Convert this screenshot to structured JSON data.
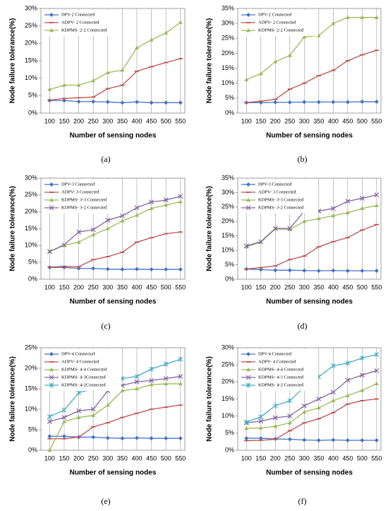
{
  "chart_data": [
    {
      "type": "line",
      "caption": "(a)",
      "xlabel": "Number of sensing nodes",
      "ylabel": "Node failure tolerance(%)",
      "x": [
        100,
        150,
        200,
        250,
        300,
        350,
        400,
        450,
        500,
        550
      ],
      "xlim": [
        70,
        565
      ],
      "xticks": [
        100,
        150,
        200,
        250,
        300,
        350,
        400,
        450,
        500,
        550
      ],
      "ylim": [
        0,
        30
      ],
      "yticks": [
        {
          "value": 0,
          "label": "0%"
        },
        {
          "value": 5,
          "label": "5%"
        },
        {
          "value": 10,
          "label": "10%"
        },
        {
          "value": 15,
          "label": "15%"
        },
        {
          "value": 20,
          "label": "20%"
        },
        {
          "value": 25,
          "label": "25%"
        },
        {
          "value": 30,
          "label": "30%"
        }
      ],
      "grid": "x",
      "legend": "top-left",
      "series": [
        {
          "name": "DPV-2 Connected",
          "color": "#4472c4",
          "marker": "diamond",
          "values": [
            3.6,
            3.6,
            3.3,
            3.3,
            3.2,
            3.0,
            3.2,
            3.0,
            3.0,
            3.0
          ]
        },
        {
          "name": "ADPV- 2 Connected",
          "color": "#c0504d",
          "marker": "dash",
          "values": [
            3.7,
            4.2,
            4.4,
            4.6,
            7.0,
            8.0,
            12.0,
            13.3,
            14.5,
            15.6
          ]
        },
        {
          "name": "KDPMS- 2-2 Connected",
          "color": "#9bbb59",
          "marker": "triangle",
          "values": [
            6.8,
            8.0,
            8.0,
            9.3,
            11.6,
            12.3,
            18.7,
            21.0,
            23.0,
            26.0
          ]
        }
      ]
    },
    {
      "type": "line",
      "caption": "(b)",
      "xlabel": "Number of sensing nodes",
      "ylabel": "Node failure tolerance(%)",
      "x": [
        100,
        150,
        200,
        250,
        300,
        350,
        400,
        450,
        500,
        550
      ],
      "xlim": [
        70,
        565
      ],
      "xticks": [
        100,
        150,
        200,
        250,
        300,
        350,
        400,
        450,
        500,
        550
      ],
      "ylim": [
        0,
        35
      ],
      "yticks": [
        {
          "value": 0,
          "label": "0%"
        },
        {
          "value": 5,
          "label": "5%"
        },
        {
          "value": 10,
          "label": "10%"
        },
        {
          "value": 15,
          "label": "15%"
        },
        {
          "value": 20,
          "label": "20%"
        },
        {
          "value": 25,
          "label": "25%"
        },
        {
          "value": 30,
          "label": "30%"
        },
        {
          "value": 35,
          "label": "35%"
        }
      ],
      "grid": "x",
      "legend": "top-left",
      "series": [
        {
          "name": "DPV-2 Connected",
          "color": "#4472c4",
          "marker": "diamond",
          "values": [
            3.5,
            3.5,
            3.6,
            3.6,
            3.7,
            3.7,
            3.7,
            3.7,
            3.8,
            3.8
          ]
        },
        {
          "name": "ADPV- 2 Connected",
          "color": "#c0504d",
          "marker": "dash",
          "values": [
            3.5,
            4.0,
            4.6,
            8.0,
            10.0,
            12.5,
            14.3,
            17.5,
            19.5,
            21.0
          ]
        },
        {
          "name": "KDPMS- 2-2 Connected",
          "color": "#9bbb59",
          "marker": "triangle",
          "values": [
            11.2,
            13.2,
            17.2,
            19.3,
            25.5,
            25.9,
            30.0,
            32.0,
            32.0,
            32.0
          ]
        }
      ]
    },
    {
      "type": "line",
      "caption": "(c)",
      "xlabel": "Number of sensing nodes",
      "ylabel": "Node failure tolerance(%)",
      "x": [
        100,
        150,
        200,
        250,
        300,
        350,
        400,
        450,
        500,
        550
      ],
      "xlim": [
        70,
        565
      ],
      "xticks": [
        100,
        150,
        200,
        250,
        300,
        350,
        400,
        450,
        500,
        550
      ],
      "ylim": [
        0,
        30
      ],
      "yticks": [
        {
          "value": 0,
          "label": "0%"
        },
        {
          "value": 5,
          "label": "5%"
        },
        {
          "value": 10,
          "label": "10%"
        },
        {
          "value": 15,
          "label": "15%"
        },
        {
          "value": 20,
          "label": "20%"
        },
        {
          "value": 25,
          "label": "25%"
        },
        {
          "value": 30,
          "label": "30%"
        }
      ],
      "grid": "x",
      "legend": "top-left",
      "series": [
        {
          "name": "DPV-3 Connected",
          "color": "#4472c4",
          "marker": "diamond",
          "values": [
            3.5,
            3.5,
            3.2,
            3.2,
            3.0,
            2.9,
            3.0,
            2.9,
            2.9,
            2.9
          ]
        },
        {
          "name": "ADPV- 3 Connected",
          "color": "#c0504d",
          "marker": "dash",
          "values": [
            3.6,
            3.8,
            3.7,
            5.8,
            6.7,
            8.0,
            11.0,
            12.3,
            13.5,
            14.0
          ]
        },
        {
          "name": "KDPMS- 3-3 Connected",
          "color": "#9bbb59",
          "marker": "triangle",
          "values": [
            8.2,
            10.0,
            11.0,
            13.2,
            15.0,
            17.3,
            19.0,
            21.0,
            22.0,
            23.0
          ]
        },
        {
          "name": "KDPMS- 3-2 Connected",
          "color": "#8064a2",
          "marker": "x",
          "values": [
            8.2,
            10.2,
            14.0,
            14.7,
            17.5,
            18.8,
            21.2,
            22.9,
            23.5,
            24.6
          ]
        }
      ]
    },
    {
      "type": "line",
      "caption": "(d)",
      "xlabel": "Number of sensing nodes",
      "ylabel": "Node failure tolerance(%)",
      "x": [
        100,
        150,
        200,
        250,
        300,
        350,
        400,
        450,
        500,
        550
      ],
      "xlim": [
        70,
        565
      ],
      "xticks": [
        100,
        150,
        200,
        250,
        300,
        350,
        400,
        450,
        500,
        550
      ],
      "ylim": [
        0,
        35
      ],
      "yticks": [
        {
          "value": 0,
          "label": "0%"
        },
        {
          "value": 5,
          "label": "5%"
        },
        {
          "value": 10,
          "label": "10%"
        },
        {
          "value": 15,
          "label": "15%"
        },
        {
          "value": 20,
          "label": "20%"
        },
        {
          "value": 25,
          "label": "25%"
        },
        {
          "value": 30,
          "label": "30%"
        },
        {
          "value": 35,
          "label": "35%"
        }
      ],
      "grid": "x",
      "legend": "top-left",
      "series": [
        {
          "name": "DPV-3 Connected",
          "color": "#4472c4",
          "marker": "diamond",
          "values": [
            3.5,
            3.3,
            3.1,
            3.1,
            3.0,
            2.9,
            3.0,
            2.9,
            2.9,
            2.9
          ]
        },
        {
          "name": "ADPV- 3 Connected",
          "color": "#c0504d",
          "marker": "dash",
          "values": [
            3.5,
            4.0,
            4.6,
            6.8,
            8.0,
            11.2,
            13.0,
            14.4,
            17.0,
            18.9
          ]
        },
        {
          "name": "KDPMS- 3-3 Connected",
          "color": "#9bbb59",
          "marker": "triangle",
          "values": [
            11.2,
            12.8,
            17.4,
            17.2,
            20.0,
            21.0,
            22.0,
            23.0,
            24.5,
            25.5
          ]
        },
        {
          "name": "KDPMS- 3-2 Connected",
          "color": "#8064a2",
          "marker": "x",
          "values": [
            11.5,
            13.0,
            17.6,
            17.6,
            23.5,
            23.6,
            24.5,
            27.0,
            28.0,
            29.2
          ]
        }
      ]
    },
    {
      "type": "line",
      "caption": "(e)",
      "xlabel": "Number of sensing nodes",
      "ylabel": "Node failure tolerance(%)",
      "x": [
        100,
        150,
        200,
        250,
        300,
        350,
        400,
        450,
        500,
        550
      ],
      "xlim": [
        70,
        565
      ],
      "xticks": [
        100,
        150,
        200,
        250,
        300,
        350,
        400,
        450,
        500,
        550
      ],
      "ylim": [
        0,
        25
      ],
      "yticks": [
        {
          "value": 0,
          "label": "0%"
        },
        {
          "value": 5,
          "label": "5%"
        },
        {
          "value": 10,
          "label": "10%"
        },
        {
          "value": 15,
          "label": "15%"
        },
        {
          "value": 20,
          "label": "20%"
        },
        {
          "value": 25,
          "label": "25%"
        }
      ],
      "grid": "x",
      "legend": "top-left",
      "series": [
        {
          "name": "DPV-4 Connected",
          "color": "#4472c4",
          "marker": "diamond",
          "values": [
            3.4,
            3.4,
            3.2,
            3.2,
            3.0,
            2.9,
            3.0,
            2.9,
            2.9,
            2.9
          ]
        },
        {
          "name": "ADPV- 4 Connected",
          "color": "#c0504d",
          "marker": "dash",
          "values": [
            2.8,
            2.8,
            3.2,
            5.7,
            6.7,
            8.0,
            9.0,
            10.0,
            10.5,
            11.0
          ]
        },
        {
          "name": "KDPMS- 4-4 Connected",
          "color": "#9bbb59",
          "marker": "triangle",
          "values": [
            0,
            7.0,
            8.0,
            8.5,
            11.0,
            14.5,
            15.0,
            16.0,
            16.2,
            16.2
          ]
        },
        {
          "name": "KDPMS- 4-3Connected",
          "color": "#8064a2",
          "marker": "x",
          "values": [
            7.0,
            8.0,
            9.6,
            10.0,
            14.5,
            15.8,
            16.7,
            17.0,
            17.5,
            18.0
          ]
        },
        {
          "name": "KDPMS- 4-2Connected",
          "color": "#4bacc6",
          "marker": "star",
          "values": [
            8.2,
            9.8,
            14.0,
            15.0,
            16.4,
            17.5,
            18.0,
            19.8,
            21.0,
            22.2
          ]
        }
      ]
    },
    {
      "type": "line",
      "caption": "(f)",
      "xlabel": "Number of sensing nodes",
      "ylabel": "Node failure tolerance(%)",
      "x": [
        100,
        150,
        200,
        250,
        300,
        350,
        400,
        450,
        500,
        550
      ],
      "xlim": [
        70,
        565
      ],
      "xticks": [
        100,
        150,
        200,
        250,
        300,
        350,
        400,
        450,
        500,
        550
      ],
      "ylim": [
        0,
        30
      ],
      "yticks": [
        {
          "value": 0,
          "label": "0%"
        },
        {
          "value": 5,
          "label": "5%"
        },
        {
          "value": 10,
          "label": "10%"
        },
        {
          "value": 15,
          "label": "15%"
        },
        {
          "value": 20,
          "label": "20%"
        },
        {
          "value": 25,
          "label": "25%"
        },
        {
          "value": 30,
          "label": "30%"
        }
      ],
      "grid": "x",
      "legend": "top-left",
      "series": [
        {
          "name": "DPV-4 Connected",
          "color": "#4472c4",
          "marker": "diamond",
          "values": [
            3.5,
            3.5,
            3.3,
            3.2,
            3.0,
            2.9,
            3.0,
            2.9,
            2.9,
            2.9
          ]
        },
        {
          "name": "ADPV- 4 Connected",
          "color": "#c0504d",
          "marker": "dash",
          "values": [
            2.8,
            2.9,
            3.2,
            5.7,
            8.0,
            9.2,
            11.0,
            13.5,
            14.5,
            15.0
          ]
        },
        {
          "name": "KDPMS- 4-4 Connected",
          "color": "#9bbb59",
          "marker": "triangle",
          "values": [
            6.4,
            6.5,
            7.0,
            8.0,
            11.2,
            12.4,
            14.5,
            16.0,
            17.5,
            19.5
          ]
        },
        {
          "name": "KDPMS- 4-3 Connected",
          "color": "#8064a2",
          "marker": "x",
          "values": [
            8.0,
            8.5,
            9.5,
            10.0,
            13.0,
            15.0,
            17.0,
            20.5,
            22.0,
            23.3
          ]
        },
        {
          "name": "KDPMS- 4-2 Connected",
          "color": "#4bacc6",
          "marker": "star",
          "values": [
            8.2,
            9.8,
            13.0,
            14.5,
            18.5,
            21.5,
            24.7,
            25.5,
            27.0,
            28.0
          ]
        }
      ]
    }
  ]
}
